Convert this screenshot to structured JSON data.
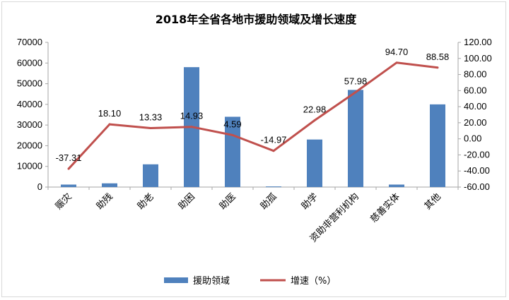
{
  "chart_data": {
    "type": "bar+line",
    "title": "2018年全省各地市援助领域及增长速度",
    "categories": [
      "赈灾",
      "助残",
      "助老",
      "助困",
      "助医",
      "助孤",
      "助学",
      "资助非营利机构",
      "慈善实体",
      "其他"
    ],
    "series": [
      {
        "name": "援助领域",
        "type": "bar",
        "axis": "left",
        "color": "#4f81bd",
        "values": [
          1200,
          1800,
          11000,
          58000,
          34000,
          300,
          23000,
          47000,
          1200,
          40000
        ]
      },
      {
        "name": "增速（%）",
        "type": "line",
        "axis": "right",
        "color": "#c0504d",
        "values": [
          -37.31,
          18.1,
          13.33,
          14.93,
          4.59,
          -14.97,
          22.98,
          57.98,
          94.7,
          88.58
        ],
        "labels": [
          "-37.31",
          "18.10",
          "13.33",
          "14.93",
          "4.59",
          "-14.97",
          "22.98",
          "57.98",
          "94.70",
          "88.58"
        ]
      }
    ],
    "y_left": {
      "min": 0,
      "max": 70000,
      "ticks": [
        "0",
        "10000",
        "20000",
        "30000",
        "40000",
        "50000",
        "60000",
        "70000"
      ]
    },
    "y_right": {
      "min": -60,
      "max": 120,
      "ticks": [
        "-60.00",
        "-40.00",
        "-20.00",
        "0.00",
        "20.00",
        "40.00",
        "60.00",
        "80.00",
        "100.00",
        "120.00"
      ]
    },
    "grid": false,
    "legend": "bottom"
  }
}
